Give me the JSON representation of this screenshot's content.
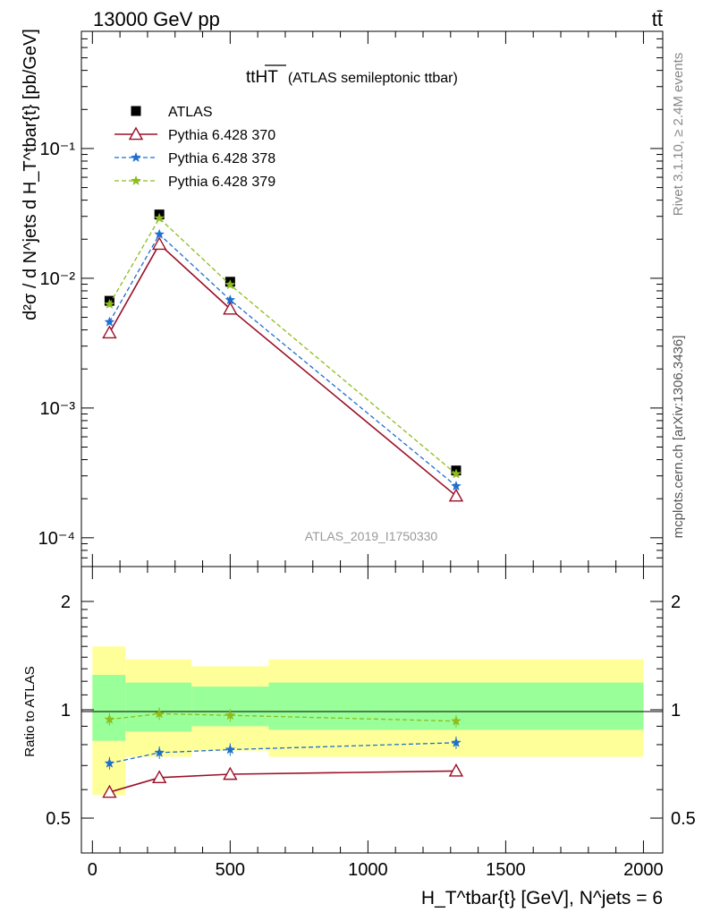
{
  "header": {
    "left": "13000 GeV pp",
    "right": "tt̄"
  },
  "side_labels": {
    "rivet": "Rivet 3.1.10, ≥ 2.4M events",
    "mcplots": "mcplots.cern.ch [arXiv:1306.3436]"
  },
  "main_plot": {
    "title_main": "ttHT",
    "title_sub": "(ATLAS semileptonic ttbar)",
    "watermark": "ATLAS_2019_I1750330",
    "ylabel": "d²σ / d N^jets d H_T^tbar{t} [pb/GeV]",
    "ytick_labels": [
      "10⁻⁴",
      "10⁻³",
      "10⁻²",
      "10⁻¹"
    ]
  },
  "ratio_plot": {
    "ylabel": "Ratio to ATLAS",
    "ytick_labels": [
      "0.5",
      "1",
      "2"
    ]
  },
  "xaxis": {
    "label": "H_T^tbar{t} [GeV], N^jets = 6",
    "tick_labels": [
      "0",
      "500",
      "1000",
      "1500",
      "2000"
    ]
  },
  "legend": [
    {
      "name": "ATLAS",
      "color": "#000000",
      "marker": "square"
    },
    {
      "name": "Pythia 6.428 370",
      "color": "#9b1027",
      "marker": "open-triangle"
    },
    {
      "name": "Pythia 6.428 378",
      "color": "#1f6fd0",
      "marker": "star"
    },
    {
      "name": "Pythia 6.428 379",
      "color": "#8cbd1c",
      "marker": "star"
    }
  ],
  "chart_data": [
    {
      "type": "line",
      "panel": "main",
      "x": [
        62,
        243,
        500,
        1320
      ],
      "x_range": [
        -40,
        2070
      ],
      "y_scale": "log",
      "ylim": [
        6e-05,
        0.8
      ],
      "series": [
        {
          "name": "ATLAS",
          "values": [
            0.0067,
            0.031,
            0.0094,
            0.00033
          ]
        },
        {
          "name": "Pythia 6.428 370",
          "values": [
            0.0038,
            0.0183,
            0.0058,
            0.00021
          ]
        },
        {
          "name": "Pythia 6.428 378",
          "values": [
            0.0046,
            0.0218,
            0.0068,
            0.00025
          ]
        },
        {
          "name": "Pythia 6.428 379",
          "values": [
            0.0063,
            0.029,
            0.0089,
            0.00031
          ]
        }
      ]
    },
    {
      "type": "line",
      "panel": "ratio",
      "x": [
        62,
        243,
        500,
        1320
      ],
      "x_range": [
        -40,
        2070
      ],
      "y_scale": "log",
      "ylim": [
        0.4,
        2.5
      ],
      "uncertainty_bins": [
        {
          "x_from": 0,
          "x_to": 120,
          "inner": [
            0.82,
            1.25
          ],
          "outer": [
            0.58,
            1.5
          ]
        },
        {
          "x_from": 120,
          "x_to": 360,
          "inner": [
            0.87,
            1.19
          ],
          "outer": [
            0.74,
            1.38
          ]
        },
        {
          "x_from": 360,
          "x_to": 640,
          "inner": [
            0.9,
            1.16
          ],
          "outer": [
            0.77,
            1.32
          ]
        },
        {
          "x_from": 640,
          "x_to": 2000,
          "inner": [
            0.88,
            1.19
          ],
          "outer": [
            0.74,
            1.38
          ]
        }
      ],
      "series": [
        {
          "name": "Pythia 6.428 370",
          "values": [
            0.59,
            0.648,
            0.662,
            0.676
          ]
        },
        {
          "name": "Pythia 6.428 378",
          "values": [
            0.71,
            0.76,
            0.775,
            0.81
          ]
        },
        {
          "name": "Pythia 6.428 379",
          "values": [
            0.94,
            0.975,
            0.965,
            0.93
          ]
        }
      ]
    }
  ]
}
